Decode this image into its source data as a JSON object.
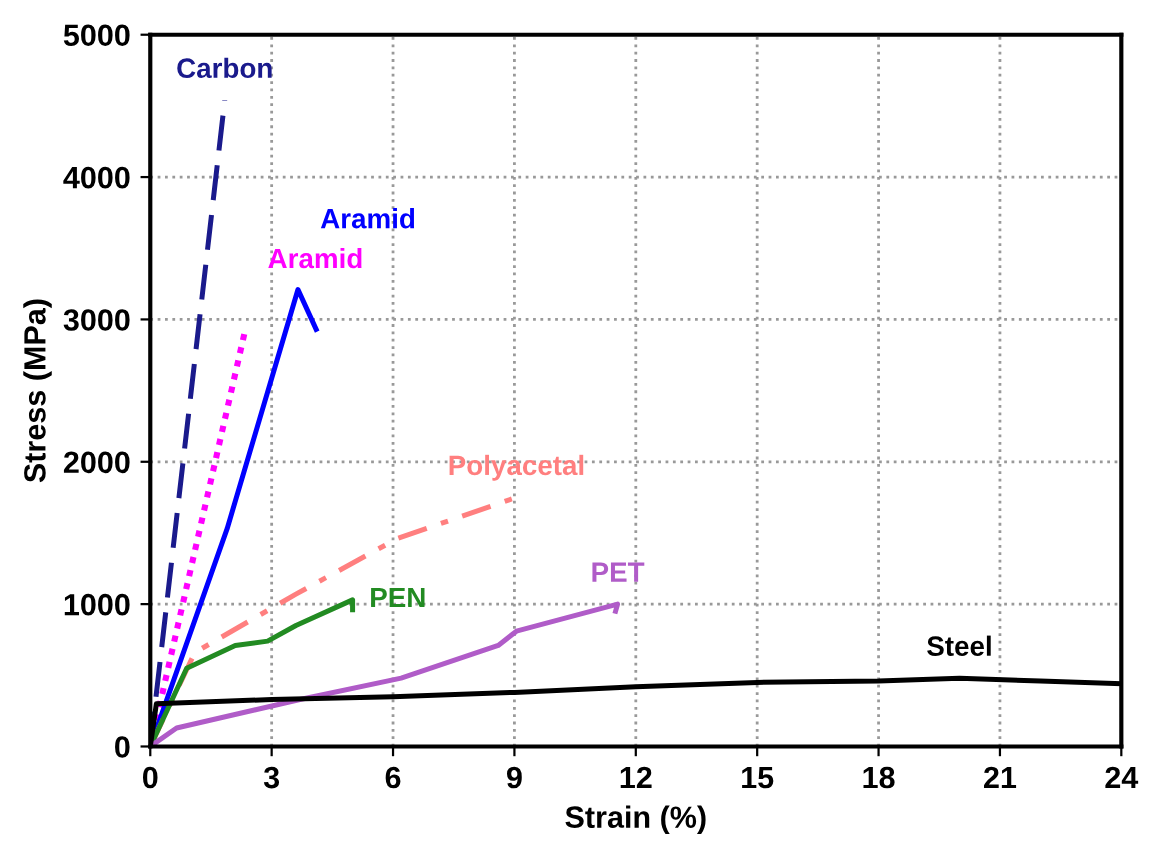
{
  "chart_data": {
    "type": "line",
    "xlabel": "Strain (%)",
    "ylabel": "Stress (MPa)",
    "xlim": [
      0,
      24
    ],
    "ylim": [
      0,
      5000
    ],
    "xticks": [
      0,
      3,
      6,
      9,
      12,
      15,
      18,
      21,
      24
    ],
    "yticks": [
      0,
      1000,
      2000,
      3000,
      4000,
      5000
    ],
    "grid": true,
    "legend": false,
    "marker": "none",
    "series": [
      {
        "name": "Carbon",
        "color": "#1a1a8c",
        "line_style": "dashed",
        "x": [
          0,
          1.84
        ],
        "values": [
          0,
          4540
        ]
      },
      {
        "name": "Aramid",
        "color": "#ff00ff",
        "line_style": "dotted",
        "x": [
          0,
          2.35
        ],
        "values": [
          0,
          2930
        ]
      },
      {
        "name": "Aramid",
        "color": "#0000ff",
        "line_style": "solid",
        "x": [
          0,
          1.9,
          3.65,
          4.1
        ],
        "values": [
          0,
          1530,
          3210,
          2930
        ]
      },
      {
        "name": "Polyacetal",
        "color": "#ff7f7f",
        "line_style": "dashdot",
        "x": [
          0,
          1.1,
          3.6,
          6.1,
          9.05
        ],
        "values": [
          0,
          660,
          1070,
          1460,
          1750
        ]
      },
      {
        "name": "PEN",
        "color": "#228b22",
        "line_style": "solid",
        "x": [
          0,
          0.9,
          2.1,
          2.9,
          3.6,
          5.0,
          5.0
        ],
        "values": [
          0,
          550,
          710,
          740,
          850,
          1030,
          960
        ]
      },
      {
        "name": "PET",
        "color": "#b05cc8",
        "line_style": "solid",
        "x": [
          0,
          0.65,
          3.7,
          6.2,
          8.6,
          9.05,
          11.55,
          11.5
        ],
        "values": [
          0,
          130,
          330,
          480,
          710,
          810,
          1000,
          950
        ]
      },
      {
        "name": "Steel",
        "color": "#000000",
        "line_style": "solid",
        "x": [
          0,
          0.15,
          3,
          6,
          9,
          12,
          15,
          18,
          20,
          22,
          24
        ],
        "values": [
          0,
          300,
          330,
          350,
          380,
          420,
          450,
          460,
          480,
          460,
          440
        ]
      }
    ]
  }
}
